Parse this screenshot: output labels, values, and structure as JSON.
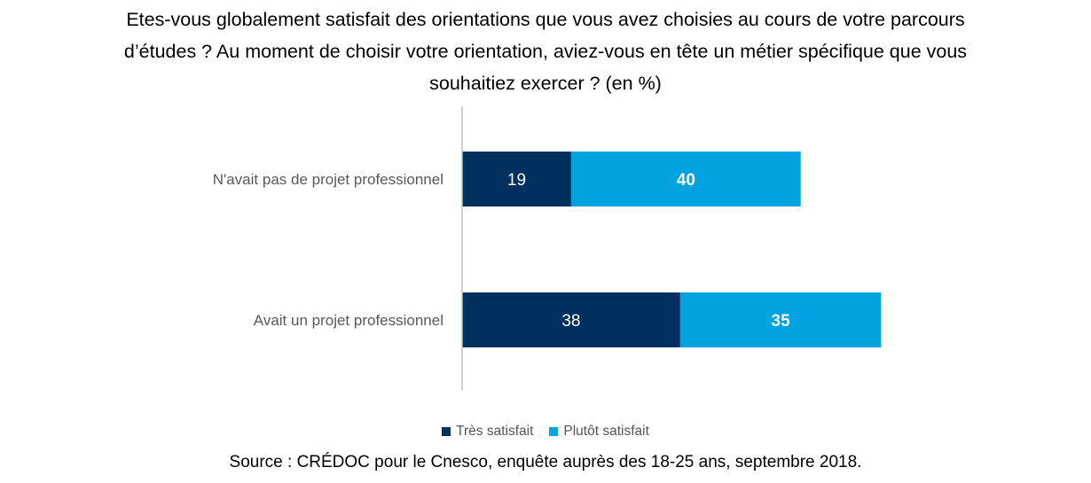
{
  "title_lines": [
    "Etes-vous globalement satisfait des orientations que vous avez choisies au cours de votre parcours",
    "d’études ? Au moment de choisir votre orientation, aviez-vous en tête un métier spécifique que vous",
    "souhaitiez exercer ? (en %)"
  ],
  "source": "Source : CRÉDOC pour le Cnesco, enquête auprès des 18-25 ans, septembre 2018.",
  "colors": {
    "tres_satisfait": "#00305E",
    "plutot_satisfait": "#00A3E0",
    "axis": "#BFBFBF",
    "category_text": "#595959"
  },
  "chart_data": {
    "type": "bar",
    "orientation": "horizontal",
    "stacked": true,
    "categories": [
      "N'avait pas de projet professionnel",
      "Avait un projet professionnel"
    ],
    "series": [
      {
        "name": "Très satisfait",
        "values": [
          19,
          38
        ],
        "color": "#00305E"
      },
      {
        "name": "Plutôt satisfait",
        "values": [
          40,
          35
        ],
        "color": "#00A3E0"
      }
    ],
    "data_labels": true,
    "legend_position": "bottom",
    "grid": false
  }
}
